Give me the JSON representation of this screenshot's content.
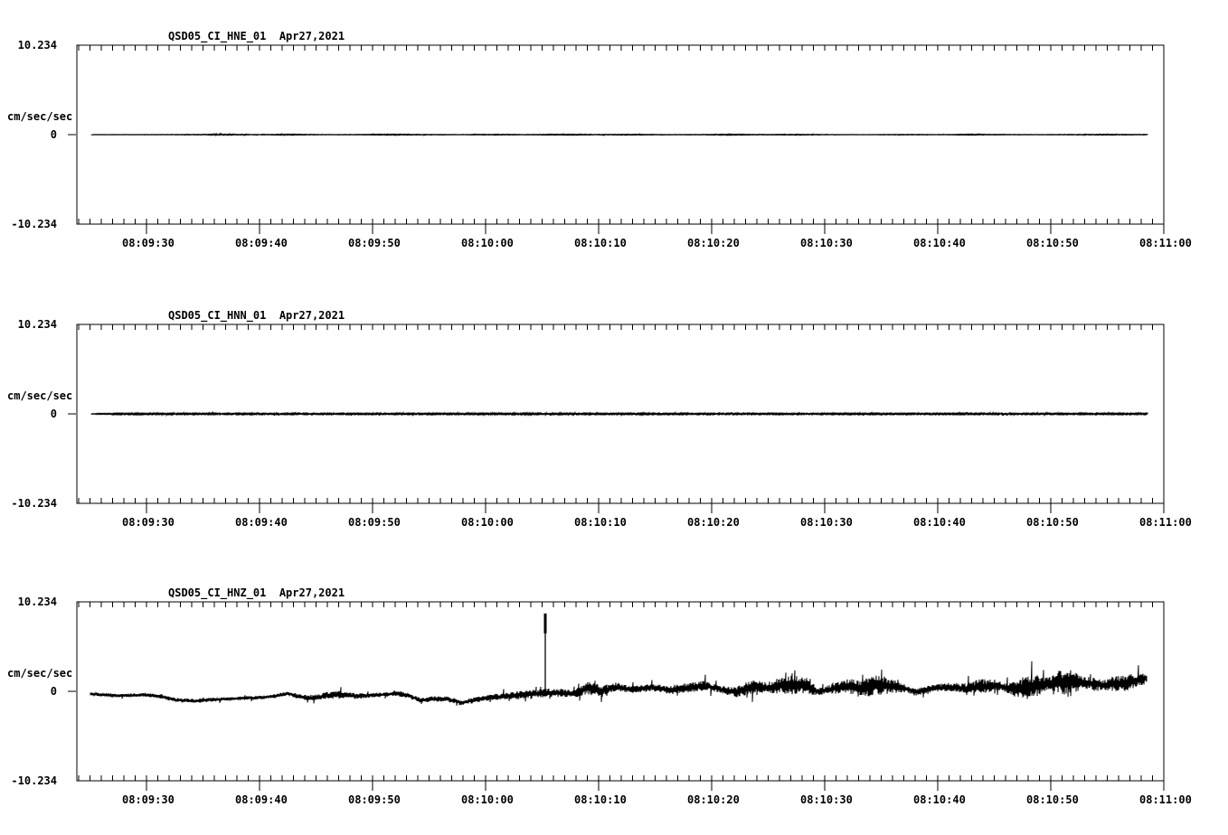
{
  "page": {
    "background": "#ffffff",
    "foreground": "#000000"
  },
  "chart_data": [
    {
      "type": "line",
      "id": "HNE",
      "title": "QSD05_CI_HNE_01  Apr27,2021",
      "station_label": "QSD05_CI_HNE_01",
      "date_label": "Apr27,2021",
      "ylabel": "cm/sec/sec",
      "ylim": [
        -10.234,
        10.234
      ],
      "y_tick_labels": [
        "10.234",
        "0",
        "-10.234"
      ],
      "x_tick_labels": [
        "08:09:30",
        "08:09:40",
        "08:09:50",
        "08:10:00",
        "08:10:10",
        "08:10:20",
        "08:10:30",
        "08:10:40",
        "08:10:50",
        "08:11:00"
      ],
      "x_span_seconds": 96.16,
      "x_first_major_offset_s": 6.16,
      "x_major_step_s": 10,
      "x_minor_step_s": 1,
      "trace": {
        "start_s": 1.3,
        "end_s": 94.7,
        "baseline": [
          [
            1.3,
            0
          ],
          [
            94.7,
            0
          ]
        ],
        "envelope": [
          [
            1.3,
            0.015
          ],
          [
            8,
            0.02
          ],
          [
            13,
            0.06
          ],
          [
            16,
            0.03
          ],
          [
            19,
            0.055
          ],
          [
            22,
            0.02
          ],
          [
            25,
            0.03
          ],
          [
            28,
            0.06
          ],
          [
            31,
            0.035
          ],
          [
            34,
            0.02
          ],
          [
            37,
            0.05
          ],
          [
            40,
            0.03
          ],
          [
            43,
            0.06
          ],
          [
            46,
            0.035
          ],
          [
            49,
            0.05
          ],
          [
            52,
            0.02
          ],
          [
            55,
            0.03
          ],
          [
            58,
            0.055
          ],
          [
            61,
            0.03
          ],
          [
            64,
            0.05
          ],
          [
            67,
            0.02
          ],
          [
            70,
            0.015
          ],
          [
            73,
            0.04
          ],
          [
            76,
            0.02
          ],
          [
            79,
            0.055
          ],
          [
            82,
            0.03
          ],
          [
            85,
            0.02
          ],
          [
            88,
            0.03
          ],
          [
            91,
            0.05
          ],
          [
            94.7,
            0.03
          ]
        ],
        "spikes": []
      }
    },
    {
      "type": "line",
      "id": "HNN",
      "title": "QSD05_CI_HNN_01  Apr27,2021",
      "station_label": "QSD05_CI_HNN_01",
      "date_label": "Apr27,2021",
      "ylabel": "cm/sec/sec",
      "ylim": [
        -10.234,
        10.234
      ],
      "y_tick_labels": [
        "10.234",
        "0",
        "-10.234"
      ],
      "x_tick_labels": [
        "08:09:30",
        "08:09:40",
        "08:09:50",
        "08:10:00",
        "08:10:10",
        "08:10:20",
        "08:10:30",
        "08:10:40",
        "08:10:50",
        "08:11:00"
      ],
      "x_span_seconds": 96.16,
      "x_first_major_offset_s": 6.16,
      "x_major_step_s": 10,
      "x_minor_step_s": 1,
      "trace": {
        "start_s": 1.3,
        "end_s": 94.7,
        "baseline": [
          [
            1.3,
            0
          ],
          [
            94.7,
            0
          ]
        ],
        "envelope": [
          [
            1.3,
            0.04
          ],
          [
            4,
            0.09
          ],
          [
            20,
            0.09
          ],
          [
            40,
            0.1
          ],
          [
            60,
            0.09
          ],
          [
            80,
            0.09
          ],
          [
            94.7,
            0.09
          ]
        ],
        "spikes": []
      }
    },
    {
      "type": "line",
      "id": "HNZ",
      "title": "QSD05_CI_HNZ_01  Apr27,2021",
      "station_label": "QSD05_CI_HNZ_01",
      "date_label": "Apr27,2021",
      "ylabel": "cm/sec/sec",
      "ylim": [
        -10.234,
        10.234
      ],
      "y_tick_labels": [
        "10.234",
        "0",
        "-10.234"
      ],
      "x_tick_labels": [
        "08:09:30",
        "08:09:40",
        "08:09:50",
        "08:10:00",
        "08:10:10",
        "08:10:20",
        "08:10:30",
        "08:10:40",
        "08:10:50",
        "08:11:00"
      ],
      "x_span_seconds": 96.16,
      "x_first_major_offset_s": 6.16,
      "x_major_step_s": 10,
      "x_minor_step_s": 1,
      "trace": {
        "start_s": 1.2,
        "end_s": 94.6,
        "baseline": [
          [
            1.2,
            -0.3
          ],
          [
            3.6,
            -0.5
          ],
          [
            6,
            -0.4
          ],
          [
            7.2,
            -0.55
          ],
          [
            8.8,
            -1.0
          ],
          [
            10.4,
            -1.1
          ],
          [
            12,
            -0.95
          ],
          [
            14.4,
            -0.8
          ],
          [
            16.4,
            -0.7
          ],
          [
            18,
            -0.45
          ],
          [
            18.7,
            -0.25
          ],
          [
            19.6,
            -0.6
          ],
          [
            20.8,
            -0.8
          ],
          [
            22,
            -0.5
          ],
          [
            23.2,
            -0.35
          ],
          [
            24.8,
            -0.55
          ],
          [
            26.8,
            -0.4
          ],
          [
            28.4,
            -0.25
          ],
          [
            29.4,
            -0.5
          ],
          [
            30.4,
            -1.05
          ],
          [
            31.6,
            -0.85
          ],
          [
            32.8,
            -0.9
          ],
          [
            34,
            -1.3
          ],
          [
            35.2,
            -1.0
          ],
          [
            36.8,
            -0.65
          ],
          [
            38.4,
            -0.5
          ],
          [
            40,
            -0.35
          ],
          [
            41.2,
            -0.2
          ],
          [
            42.4,
            -0.15
          ],
          [
            44,
            -0.3
          ],
          [
            45.2,
            0.4
          ],
          [
            46.4,
            0.0
          ],
          [
            47.6,
            0.5
          ],
          [
            49.2,
            0.2
          ],
          [
            50.8,
            0.45
          ],
          [
            52.4,
            0.15
          ],
          [
            54,
            0.4
          ],
          [
            55.6,
            0.65
          ],
          [
            57.2,
            0.15
          ],
          [
            58.4,
            -0.1
          ],
          [
            59.8,
            0.6
          ],
          [
            61.2,
            0.35
          ],
          [
            62.8,
            0.8
          ],
          [
            64.4,
            0.7
          ],
          [
            65.6,
            -0.05
          ],
          [
            66.8,
            0.3
          ],
          [
            68.4,
            0.6
          ],
          [
            69.6,
            0.3
          ],
          [
            70.8,
            0.8
          ],
          [
            72,
            0.6
          ],
          [
            73.2,
            0.35
          ],
          [
            74.2,
            -0.1
          ],
          [
            75.6,
            0.3
          ],
          [
            77.2,
            0.5
          ],
          [
            78.4,
            0.3
          ],
          [
            79.6,
            0.45
          ],
          [
            81.2,
            0.7
          ],
          [
            82.8,
            0.25
          ],
          [
            84.4,
            0.55
          ],
          [
            86,
            0.9
          ],
          [
            87.6,
            1.1
          ],
          [
            89.2,
            0.95
          ],
          [
            90.8,
            0.7
          ],
          [
            92.4,
            0.9
          ],
          [
            93.6,
            1.2
          ],
          [
            94.6,
            1.5
          ]
        ],
        "envelope": [
          [
            1.2,
            0.15
          ],
          [
            6,
            0.2
          ],
          [
            10,
            0.25
          ],
          [
            14,
            0.2
          ],
          [
            16,
            0.2
          ],
          [
            20,
            0.3
          ],
          [
            23,
            0.45
          ],
          [
            26,
            0.25
          ],
          [
            29,
            0.3
          ],
          [
            33,
            0.3
          ],
          [
            37,
            0.35
          ],
          [
            40,
            0.5
          ],
          [
            42,
            0.5
          ],
          [
            44,
            0.4
          ],
          [
            45.2,
            0.8
          ],
          [
            47,
            0.6
          ],
          [
            49,
            0.4
          ],
          [
            52,
            0.5
          ],
          [
            55.6,
            0.6
          ],
          [
            57,
            0.4
          ],
          [
            59.8,
            0.9
          ],
          [
            61,
            0.5
          ],
          [
            63,
            1.2
          ],
          [
            64.4,
            0.9
          ],
          [
            66,
            0.4
          ],
          [
            68.4,
            0.9
          ],
          [
            70.8,
            1.3
          ],
          [
            73,
            0.5
          ],
          [
            75,
            0.4
          ],
          [
            78,
            0.5
          ],
          [
            80,
            0.9
          ],
          [
            82,
            0.5
          ],
          [
            84.4,
            1.5
          ],
          [
            86,
            0.8
          ],
          [
            87.6,
            1.6
          ],
          [
            89,
            0.8
          ],
          [
            91,
            0.6
          ],
          [
            92.4,
            1.0
          ],
          [
            94,
            0.8
          ],
          [
            94.6,
            0.6
          ]
        ],
        "spikes": [
          [
            41.44,
            8.9
          ]
        ]
      }
    }
  ]
}
